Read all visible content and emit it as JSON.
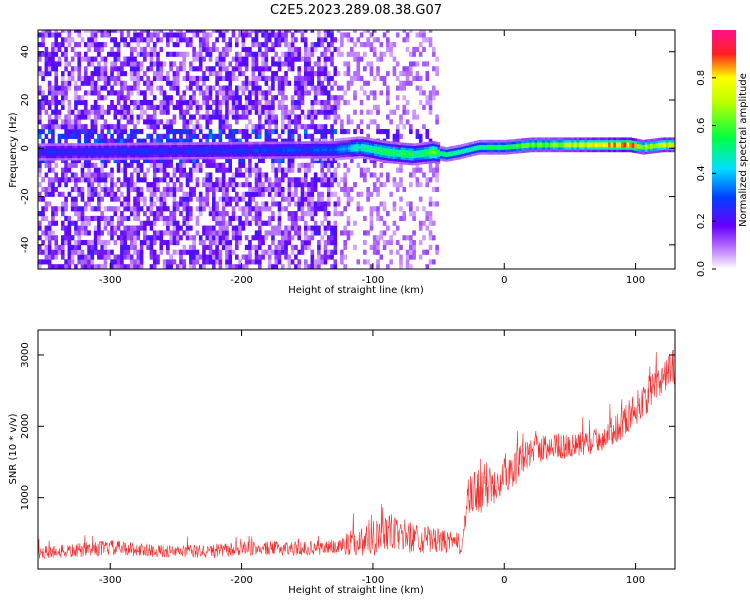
{
  "title": "C2E5.2023.289.08.38.G07",
  "chart_data": [
    {
      "type": "heatmap",
      "title": "C2E5.2023.289.08.38.G07",
      "xlabel": "Height of straight line (km)",
      "ylabel": "Frequency (Hz)",
      "xlim": [
        -355,
        130
      ],
      "ylim": [
        -50,
        49
      ],
      "xticks": [
        -300,
        -200,
        -100,
        0,
        100
      ],
      "xtick_labels": [
        "-300",
        "-200",
        "-100",
        "0",
        "100"
      ],
      "yticks": [
        -40,
        -20,
        0,
        20,
        40
      ],
      "ytick_labels": [
        "-40",
        "-20",
        "0",
        "20",
        "40"
      ],
      "noise_region_x": [
        -355,
        -50
      ],
      "signal_track": {
        "x": [
          -355,
          -130,
          -110,
          -90,
          -70,
          -55,
          -45,
          -35,
          -20,
          0,
          20,
          40,
          60,
          80,
          95,
          105,
          120,
          130
        ],
        "freq": [
          -2,
          -1,
          0,
          -2,
          -3,
          -2,
          -3,
          -2,
          0,
          0,
          1,
          1,
          1,
          1,
          1,
          0,
          1,
          1
        ],
        "amplitude": [
          0.25,
          0.3,
          0.5,
          0.55,
          0.55,
          0.6,
          0.55,
          0.5,
          0.55,
          0.6,
          0.65,
          0.7,
          0.8,
          0.9,
          0.92,
          0.7,
          0.8,
          0.75
        ]
      },
      "colorbar": {
        "label": "Normalized spectral amplitude",
        "range": [
          0,
          1
        ],
        "ticks": [
          0.0,
          0.2,
          0.4,
          0.6,
          0.8
        ],
        "tick_labels": [
          "0.0",
          "0.2",
          "0.4",
          "0.6",
          "0.8"
        ]
      }
    },
    {
      "type": "line",
      "xlabel": "Height of straight line (km)",
      "ylabel": "SNR (10 * v/v)",
      "xlim": [
        -355,
        130
      ],
      "ylim": [
        0,
        3350
      ],
      "xticks": [
        -300,
        -200,
        -100,
        0,
        100
      ],
      "xtick_labels": [
        "-300",
        "-200",
        "-100",
        "0",
        "100"
      ],
      "yticks": [
        1000,
        2000,
        3000
      ],
      "ytick_labels": [
        "1000",
        "2000",
        "3000"
      ],
      "color": "#f03030",
      "series": [
        {
          "name": "SNR",
          "x": [
            -355,
            -330,
            -300,
            -270,
            -250,
            -220,
            -200,
            -180,
            -150,
            -130,
            -110,
            -100,
            -90,
            -80,
            -60,
            -40,
            -32,
            -28,
            -20,
            -10,
            0,
            10,
            20,
            30,
            40,
            50,
            60,
            70,
            80,
            90,
            100,
            110,
            120,
            130
          ],
          "y": [
            230,
            250,
            300,
            260,
            240,
            250,
            280,
            290,
            290,
            310,
            380,
            480,
            520,
            480,
            420,
            370,
            350,
            950,
            1100,
            1200,
            1350,
            1450,
            1650,
            1700,
            1730,
            1700,
            1750,
            1800,
            1900,
            2050,
            2250,
            2450,
            2650,
            2850
          ],
          "noise_amplitude": [
            90,
            100,
            110,
            90,
            90,
            100,
            100,
            100,
            100,
            110,
            200,
            300,
            300,
            250,
            200,
            150,
            150,
            300,
            350,
            350,
            300,
            250,
            220,
            200,
            180,
            180,
            180,
            180,
            200,
            220,
            240,
            260,
            280,
            300
          ]
        }
      ]
    }
  ]
}
